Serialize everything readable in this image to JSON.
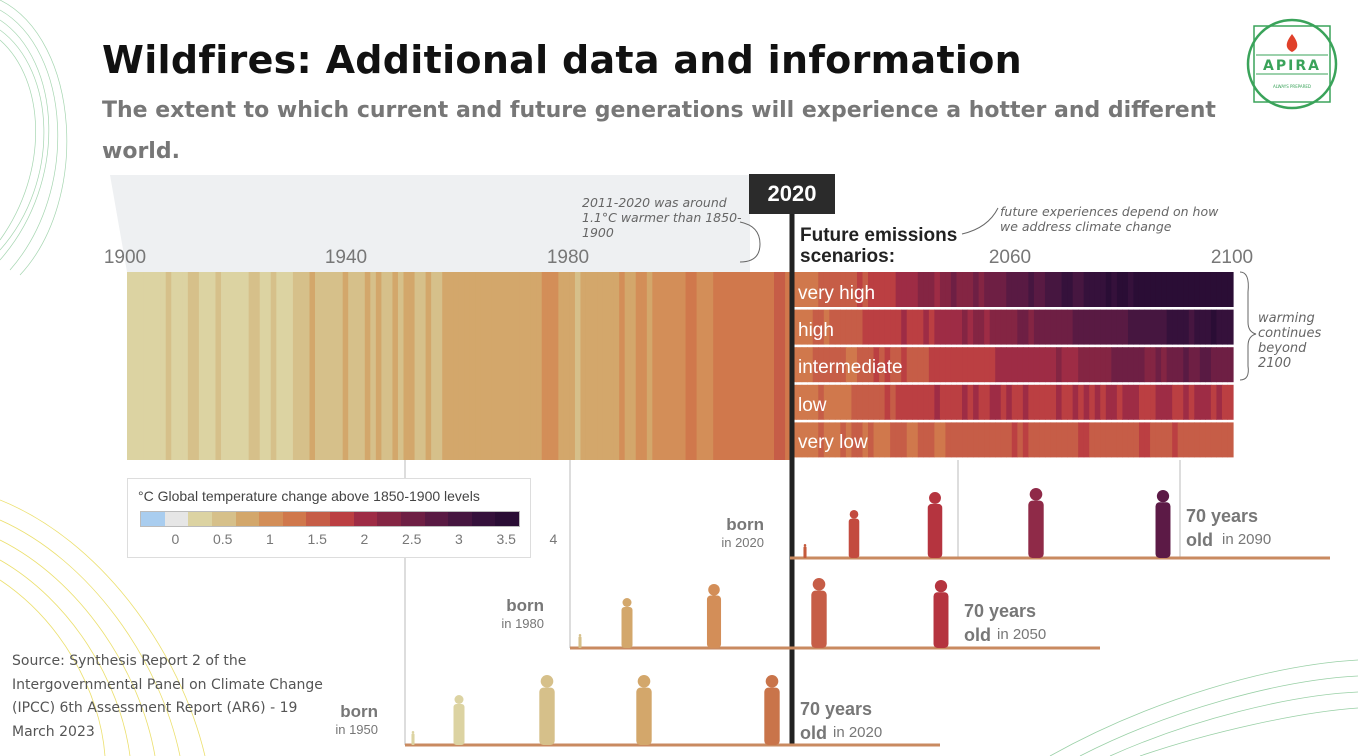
{
  "slide": {
    "title": "Wildfires: Additional data and information",
    "subtitle": "The extent to which current and future generations will experience a hotter and different world.",
    "source": "Source: Synthesis Report 2 of the Intergovernmental Panel on Climate Change (IPCC) 6th Assessment Report (AR6) - 19 March 2023",
    "logo": {
      "text": "APIRA",
      "tagline": "ALWAYS PREPARED",
      "color": "#3aa35a",
      "flame_color": "#e0402a"
    }
  },
  "figure": {
    "marker_2020": "2020",
    "axis_ticks": [
      "1900",
      "1940",
      "1980",
      "2060",
      "2100"
    ],
    "note_past": "2011-2020 was around 1.1°C warmer than 1850-1900",
    "future_heading": "Future emissions scenarios:",
    "note_future": "future experiences depend on how we address climate change",
    "note_beyond": "warming continues beyond 2100",
    "scenarios": [
      "very high",
      "high",
      "intermediate",
      "low",
      "very low"
    ],
    "legend": {
      "title": "°C Global temperature change above 1850-1900 levels",
      "ticks": [
        "0",
        "0.5",
        "1",
        "1.5",
        "2",
        "2.5",
        "3",
        "3.5",
        "4"
      ],
      "colors": [
        "#a9cdef",
        "#e6e6e6",
        "#dcd3a2",
        "#d6c08a",
        "#d3a76b",
        "#d38e58",
        "#d0784c",
        "#c65d47",
        "#bb3f42",
        "#9e2c45",
        "#842543",
        "#6e1f44",
        "#591a43",
        "#461640",
        "#35113b",
        "#2a0d35"
      ]
    },
    "cohorts": [
      {
        "born_label": "born",
        "born_year": "in 2020",
        "old_label": "70 years old",
        "old_year": "in 2090"
      },
      {
        "born_label": "born",
        "born_year": "in 1980",
        "old_label": "70 years old",
        "old_year": "in 2050"
      },
      {
        "born_label": "born",
        "born_year": "in 1950",
        "old_label": "70 years old",
        "old_year": "in 2020"
      }
    ]
  }
}
